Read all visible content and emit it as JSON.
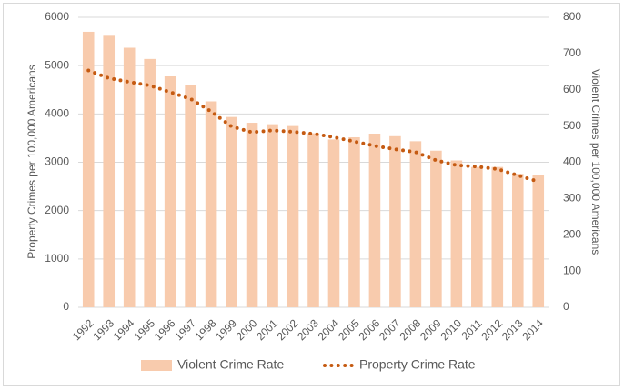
{
  "chart_data": {
    "type": "combo",
    "y_label": "Property Crimes per 100,000 Americans",
    "y2_label": "Violent Crimes per 100,000 Americans",
    "categories": [
      "1992",
      "1993",
      "1994",
      "1995",
      "1996",
      "1997",
      "1998",
      "1999",
      "2000",
      "2001",
      "2002",
      "2003",
      "2004",
      "2005",
      "2006",
      "2007",
      "2008",
      "2009",
      "2010",
      "2011",
      "2012",
      "2013",
      "2014"
    ],
    "series": [
      {
        "name": "Violent Crime Rate",
        "mark": "bar",
        "axis": "y2",
        "color": "#f8cbad",
        "values": [
          760,
          749,
          716,
          685,
          637,
          613,
          568,
          525,
          509,
          505,
          500,
          480,
          463,
          469,
          479,
          472,
          458,
          432,
          405,
          387,
          387,
          368,
          366
        ]
      },
      {
        "name": "Property Crime Rate",
        "mark": "dots",
        "color": "#c55a11",
        "values": [
          4900,
          4740,
          4660,
          4590,
          4450,
          4310,
          4050,
          3740,
          3620,
          3660,
          3630,
          3590,
          3520,
          3430,
          3340,
          3270,
          3210,
          3040,
          2940,
          2910,
          2860,
          2730,
          2600
        ]
      }
    ],
    "ylim": [
      0,
      6000
    ],
    "yticks": [
      0,
      1000,
      2000,
      3000,
      4000,
      5000,
      6000
    ],
    "y2lim": [
      0,
      800
    ],
    "y2ticks": [
      0,
      100,
      200,
      300,
      400,
      500,
      600,
      700,
      800
    ],
    "grid": true,
    "legend": "bottom"
  }
}
